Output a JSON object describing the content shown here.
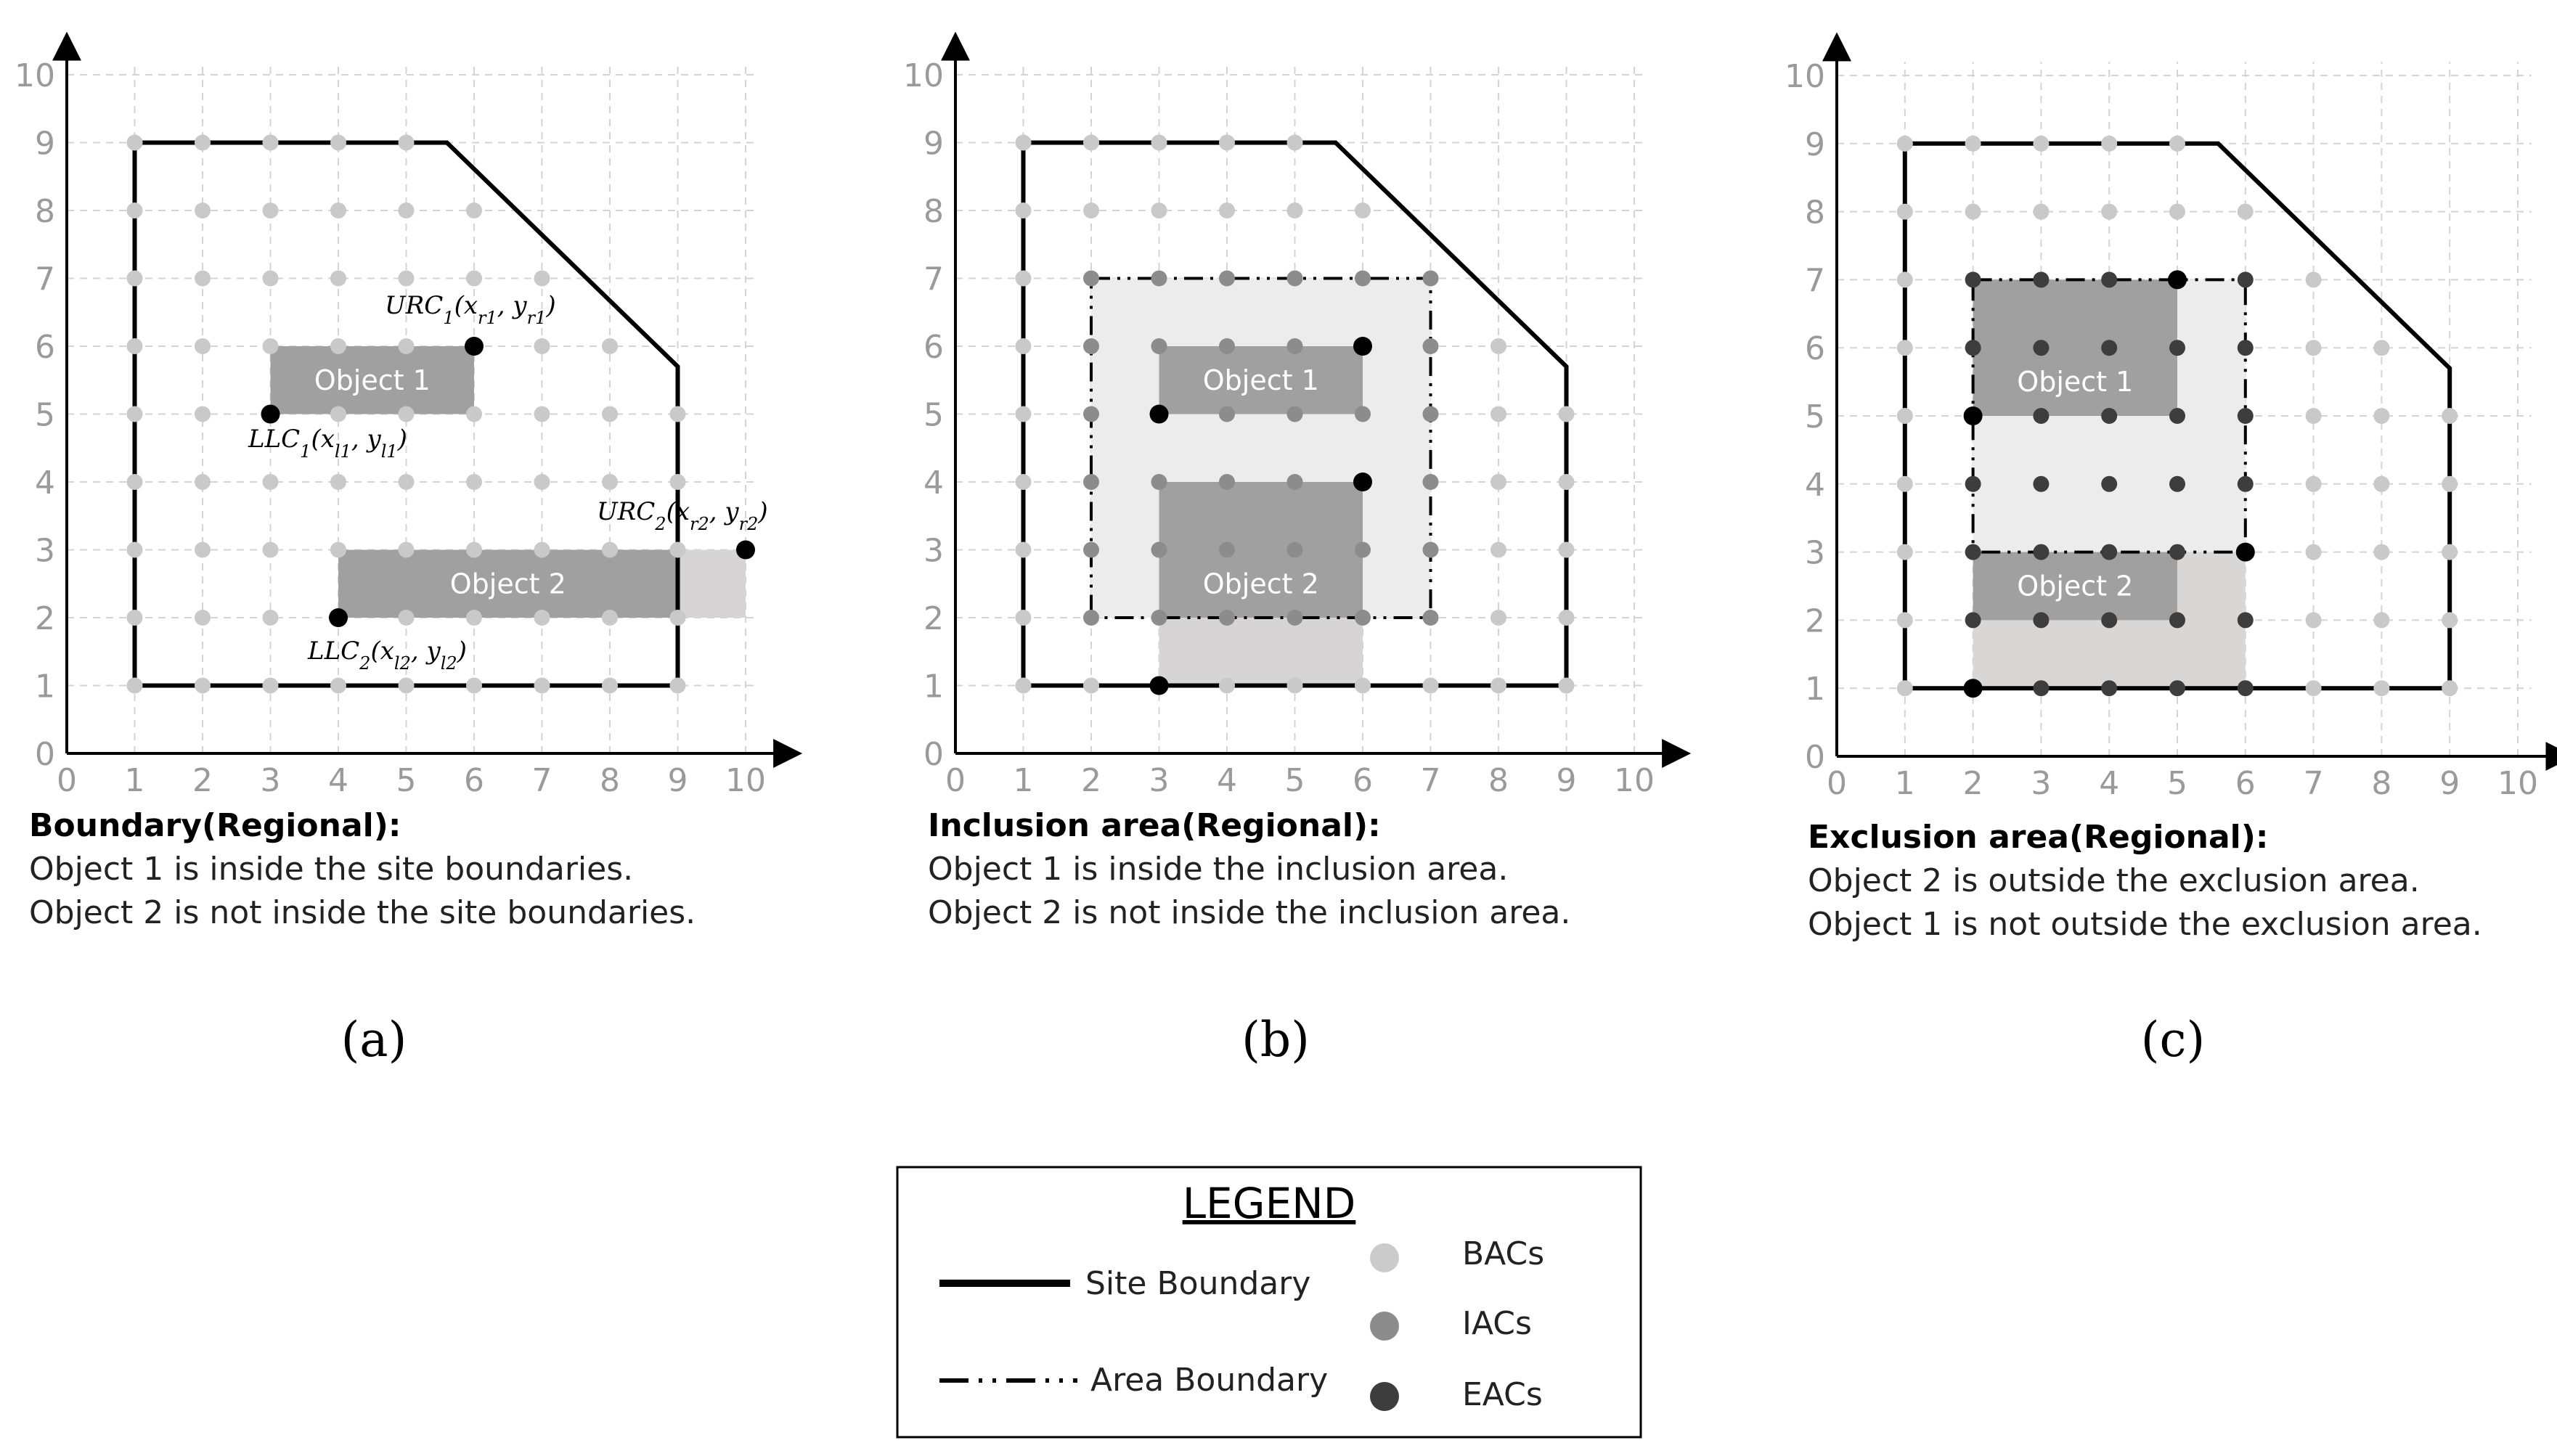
{
  "axis": {
    "ticks": [
      "0",
      "1",
      "2",
      "3",
      "4",
      "5",
      "6",
      "7",
      "8",
      "9",
      "10"
    ]
  },
  "colors": {
    "grid": "#d4d4d4",
    "bac": "#c9c9c9",
    "iac": "#8c8c8c",
    "eac": "#3d3d3d",
    "corner": "#000000",
    "object": "#a0a0a0",
    "overflow": "#d6d4d4",
    "inclusion_fill": "#ececec",
    "exclusion_fill": "#ececec",
    "exclusion_lower": "#d9d6d6"
  },
  "site_boundary": [
    [
      1,
      1
    ],
    [
      1,
      9
    ],
    [
      5.6,
      9
    ],
    [
      9,
      5.7
    ],
    [
      9,
      1
    ]
  ],
  "panels": [
    {
      "id": "a",
      "label": "(a)",
      "caption": {
        "title": "Boundary(Regional):",
        "line1": "Object 1 is inside the site boundaries.",
        "line2": "Object 2 is not inside the site boundaries."
      },
      "objects": [
        {
          "name": "Object 1",
          "llc": [
            3,
            5
          ],
          "urc": [
            6,
            6
          ]
        },
        {
          "name": "Object 2",
          "llc": [
            4,
            2
          ],
          "urc": [
            9,
            3
          ]
        }
      ],
      "overflow_rect": {
        "llc": [
          9,
          2
        ],
        "urc": [
          10,
          3
        ]
      },
      "corner_points": [
        [
          6,
          6
        ],
        [
          3,
          5
        ],
        [
          10,
          3
        ],
        [
          4,
          2
        ]
      ],
      "annotations": {
        "urc1": {
          "base": "URC",
          "sub": "1",
          "mid": "(x",
          "sub1": "r1",
          "mid2": ", y",
          "sub2": "r1",
          "end": ")"
        },
        "llc1": {
          "base": "LLC",
          "sub": "1",
          "mid": "(x",
          "sub1": "l1",
          "mid2": ", y",
          "sub2": "l1",
          "end": ")"
        },
        "urc2": {
          "base": "URC",
          "sub": "2",
          "mid": "(x",
          "sub1": "r2",
          "mid2": ", y",
          "sub2": "r2",
          "end": ")"
        },
        "llc2": {
          "base": "LLC",
          "sub": "2",
          "mid": "(x",
          "sub1": "l2",
          "mid2": ", y",
          "sub2": "l2",
          "end": ")"
        }
      }
    },
    {
      "id": "b",
      "label": "(b)",
      "caption": {
        "title": "Inclusion area(Regional):",
        "line1": "Object 1 is inside the inclusion area.",
        "line2": "Object 2 is not inside the inclusion area."
      },
      "inclusion_area": {
        "llc": [
          2,
          2
        ],
        "urc": [
          7,
          7
        ]
      },
      "lower_rect": {
        "llc": [
          3,
          1
        ],
        "urc": [
          6,
          2
        ]
      },
      "objects": [
        {
          "name": "Object 1",
          "llc": [
            3,
            5
          ],
          "urc": [
            6,
            6
          ]
        },
        {
          "name": "Object 2",
          "llc": [
            3,
            2
          ],
          "urc": [
            6,
            4
          ]
        }
      ],
      "corner_points": [
        [
          6,
          6
        ],
        [
          3,
          5
        ],
        [
          6,
          4
        ],
        [
          3,
          1
        ]
      ]
    },
    {
      "id": "c",
      "label": "(c)",
      "caption": {
        "title": "Exclusion area(Regional):",
        "line1": "Object 2 is outside the exclusion area.",
        "line2": "Object 1 is not outside the exclusion area."
      },
      "exclusion_area": {
        "llc": [
          2,
          3
        ],
        "urc": [
          6,
          7
        ]
      },
      "lower_rect": {
        "llc": [
          2,
          1
        ],
        "urc": [
          6,
          3
        ]
      },
      "objects": [
        {
          "name": "Object 1",
          "llc": [
            2,
            5
          ],
          "urc": [
            5,
            7
          ]
        },
        {
          "name": "Object 2",
          "llc": [
            2,
            2
          ],
          "urc": [
            5,
            3
          ]
        }
      ],
      "corner_points": [
        [
          5,
          7
        ],
        [
          2,
          5
        ],
        [
          6,
          3
        ],
        [
          2,
          1
        ]
      ]
    }
  ],
  "legend": {
    "title": "LEGEND",
    "site_boundary": "Site Boundary",
    "area_boundary": "Area Boundary",
    "bacs": "BACs",
    "iacs": "IACs",
    "eacs": "EACs"
  }
}
